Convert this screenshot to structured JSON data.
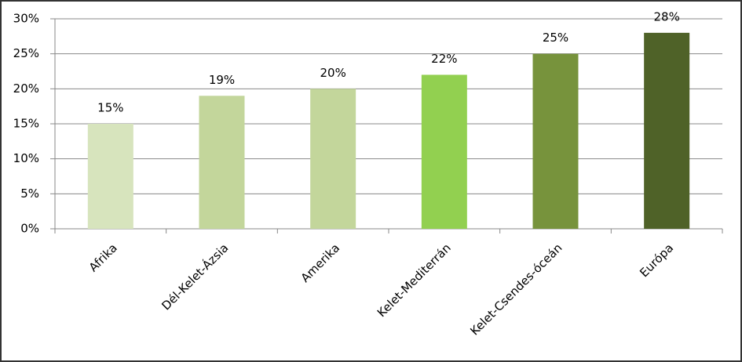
{
  "chart_data": {
    "type": "bar",
    "categories": [
      "Afrika",
      "Dél-Kelet-Ázsia",
      "Amerika",
      "Kelet-Mediterrán",
      "Kelet-Csendes-óceán",
      "Európa"
    ],
    "values": [
      15,
      19,
      20,
      22,
      25,
      28
    ],
    "value_labels": [
      "15%",
      "19%",
      "20%",
      "22%",
      "25%",
      "28%"
    ],
    "colors": [
      "#d7e4bd",
      "#c3d69b",
      "#c3d69b",
      "#92d050",
      "#77933c",
      "#4f6228"
    ],
    "ylim": [
      0,
      30
    ],
    "yticks": [
      {
        "value": 0,
        "label": "0%"
      },
      {
        "value": 5,
        "label": "5%"
      },
      {
        "value": 10,
        "label": "10%"
      },
      {
        "value": 15,
        "label": "15%"
      },
      {
        "value": 20,
        "label": "20%"
      },
      {
        "value": 25,
        "label": "25%"
      },
      {
        "value": 30,
        "label": "30%"
      }
    ],
    "grid": true
  }
}
